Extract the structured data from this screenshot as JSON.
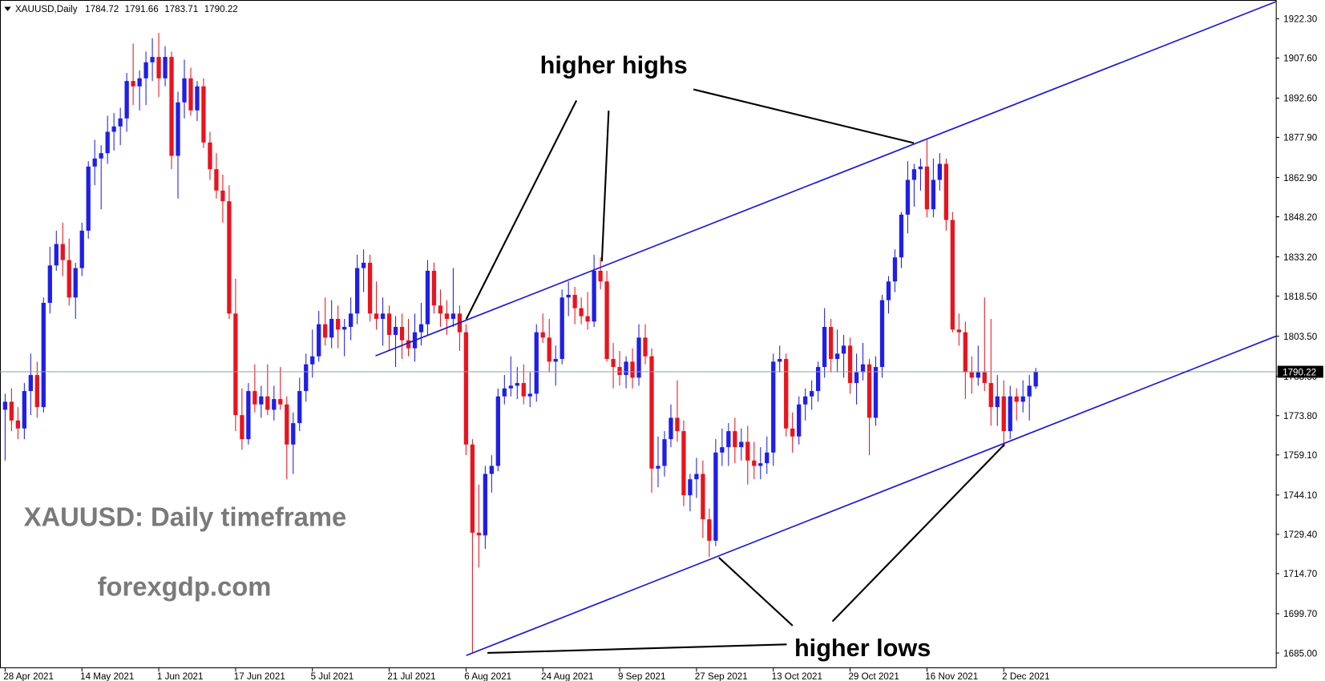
{
  "chart_data": {
    "type": "candlestick",
    "title": "XAUUSD,Daily",
    "up_color": "#1f1fe6",
    "down_color": "#e8141e",
    "channel_color": "#1a1ad0",
    "price_line_color": "#8c9cac",
    "grid": false,
    "xlim": [
      -0.8,
      198.5
    ],
    "ylim": [
      1679.3,
      1929.3
    ],
    "xticks": [
      {
        "value": 0,
        "label": "28 Apr 2021"
      },
      {
        "value": 12,
        "label": "14 May 2021"
      },
      {
        "value": 24,
        "label": "1 Jun 2021"
      },
      {
        "value": 36,
        "label": "17 Jun 2021"
      },
      {
        "value": 48,
        "label": "5 Jul 2021"
      },
      {
        "value": 60,
        "label": "21 Jul 2021"
      },
      {
        "value": 72,
        "label": "6 Aug 2021"
      },
      {
        "value": 84,
        "label": "24 Aug 2021"
      },
      {
        "value": 96,
        "label": "9 Sep 2021"
      },
      {
        "value": 108,
        "label": "27 Sep 2021"
      },
      {
        "value": 120,
        "label": "13 Oct 2021"
      },
      {
        "value": 132,
        "label": "29 Oct 2021"
      },
      {
        "value": 144,
        "label": "16 Nov 2021"
      },
      {
        "value": 156,
        "label": "2 Dec 2021"
      }
    ],
    "yticks": [
      {
        "value": 1685.0,
        "label": "1685.00"
      },
      {
        "value": 1699.7,
        "label": "1699.70"
      },
      {
        "value": 1714.7,
        "label": "1714.70"
      },
      {
        "value": 1729.4,
        "label": "1729.40"
      },
      {
        "value": 1744.1,
        "label": "1744.10"
      },
      {
        "value": 1759.1,
        "label": "1759.10"
      },
      {
        "value": 1773.8,
        "label": "1773.80"
      },
      {
        "value": 1788.5,
        "label": "1788.50"
      },
      {
        "value": 1803.5,
        "label": "1803.50"
      },
      {
        "value": 1818.5,
        "label": "1818.50"
      },
      {
        "value": 1833.2,
        "label": "1833.20"
      },
      {
        "value": 1848.2,
        "label": "1848.20"
      },
      {
        "value": 1862.9,
        "label": "1862.90"
      },
      {
        "value": 1877.9,
        "label": "1877.90"
      },
      {
        "value": 1892.6,
        "label": "1892.60"
      },
      {
        "value": 1907.6,
        "label": "1907.60"
      },
      {
        "value": 1922.3,
        "label": "1922.30"
      }
    ],
    "annotations": [
      "higher highs",
      "higher lows",
      "XAUUSD: Daily timeframe",
      "forexgdp.com"
    ],
    "ohlc": [
      [
        1776,
        1782,
        1757,
        1779
      ],
      [
        1779,
        1784,
        1768,
        1772
      ],
      [
        1772,
        1777,
        1765,
        1769
      ],
      [
        1769,
        1786,
        1765,
        1783
      ],
      [
        1783,
        1797,
        1774,
        1789
      ],
      [
        1789,
        1794,
        1773,
        1777
      ],
      [
        1777,
        1818,
        1775,
        1816
      ],
      [
        1816,
        1837,
        1812,
        1830
      ],
      [
        1830,
        1843,
        1828,
        1838
      ],
      [
        1838,
        1846,
        1826,
        1832
      ],
      [
        1832,
        1840,
        1815,
        1818
      ],
      [
        1818,
        1831,
        1810,
        1829
      ],
      [
        1829,
        1846,
        1826,
        1843
      ],
      [
        1843,
        1869,
        1840,
        1867
      ],
      [
        1867,
        1877,
        1860,
        1870
      ],
      [
        1870,
        1875,
        1851,
        1872
      ],
      [
        1872,
        1886,
        1868,
        1880
      ],
      [
        1880,
        1887,
        1873,
        1882
      ],
      [
        1882,
        1889,
        1875,
        1885
      ],
      [
        1885,
        1902,
        1880,
        1899
      ],
      [
        1899,
        1913,
        1890,
        1897
      ],
      [
        1897,
        1903,
        1888,
        1900
      ],
      [
        1900,
        1910,
        1890,
        1906
      ],
      [
        1906,
        1915,
        1899,
        1908
      ],
      [
        1908,
        1917,
        1893,
        1900
      ],
      [
        1900,
        1912,
        1897,
        1908
      ],
      [
        1908,
        1910,
        1866,
        1871
      ],
      [
        1871,
        1895,
        1855,
        1891
      ],
      [
        1891,
        1907,
        1885,
        1900
      ],
      [
        1900,
        1904,
        1886,
        1888
      ],
      [
        1888,
        1899,
        1884,
        1897
      ],
      [
        1897,
        1900,
        1874,
        1876
      ],
      [
        1876,
        1880,
        1862,
        1866
      ],
      [
        1866,
        1872,
        1855,
        1858
      ],
      [
        1858,
        1864,
        1846,
        1854
      ],
      [
        1854,
        1860,
        1810,
        1812
      ],
      [
        1812,
        1825,
        1768,
        1774
      ],
      [
        1774,
        1784,
        1761,
        1765
      ],
      [
        1765,
        1786,
        1763,
        1783
      ],
      [
        1783,
        1793,
        1775,
        1778
      ],
      [
        1778,
        1785,
        1773,
        1781
      ],
      [
        1781,
        1793,
        1774,
        1776
      ],
      [
        1776,
        1785,
        1772,
        1780
      ],
      [
        1780,
        1792,
        1776,
        1778
      ],
      [
        1778,
        1781,
        1750,
        1763
      ],
      [
        1763,
        1775,
        1752,
        1771
      ],
      [
        1771,
        1788,
        1768,
        1783
      ],
      [
        1783,
        1797,
        1779,
        1793
      ],
      [
        1793,
        1806,
        1788,
        1796
      ],
      [
        1796,
        1813,
        1794,
        1808
      ],
      [
        1808,
        1818,
        1800,
        1803
      ],
      [
        1803,
        1817,
        1799,
        1810
      ],
      [
        1810,
        1815,
        1799,
        1806
      ],
      [
        1806,
        1810,
        1796,
        1807
      ],
      [
        1807,
        1818,
        1802,
        1812
      ],
      [
        1812,
        1834,
        1808,
        1829
      ],
      [
        1829,
        1836,
        1820,
        1831
      ],
      [
        1831,
        1834,
        1809,
        1812
      ],
      [
        1812,
        1824,
        1806,
        1810
      ],
      [
        1810,
        1818,
        1800,
        1812
      ],
      [
        1812,
        1815,
        1798,
        1804
      ],
      [
        1804,
        1811,
        1792,
        1807
      ],
      [
        1807,
        1812,
        1795,
        1802
      ],
      [
        1802,
        1810,
        1796,
        1799
      ],
      [
        1799,
        1812,
        1794,
        1805
      ],
      [
        1805,
        1816,
        1800,
        1808
      ],
      [
        1808,
        1832,
        1804,
        1828
      ],
      [
        1828,
        1831,
        1812,
        1815
      ],
      [
        1815,
        1821,
        1807,
        1812
      ],
      [
        1812,
        1817,
        1804,
        1810
      ],
      [
        1810,
        1829,
        1807,
        1812
      ],
      [
        1812,
        1815,
        1798,
        1805
      ],
      [
        1805,
        1808,
        1759,
        1763
      ],
      [
        1763,
        1765,
        1685,
        1730
      ],
      [
        1730,
        1748,
        1717,
        1729
      ],
      [
        1729,
        1755,
        1724,
        1752
      ],
      [
        1752,
        1759,
        1745,
        1755
      ],
      [
        1755,
        1784,
        1753,
        1781
      ],
      [
        1781,
        1789,
        1778,
        1784
      ],
      [
        1784,
        1796,
        1781,
        1785
      ],
      [
        1785,
        1792,
        1780,
        1786
      ],
      [
        1786,
        1793,
        1778,
        1781
      ],
      [
        1781,
        1790,
        1777,
        1782
      ],
      [
        1782,
        1808,
        1779,
        1805
      ],
      [
        1805,
        1812,
        1801,
        1803
      ],
      [
        1803,
        1810,
        1790,
        1794
      ],
      [
        1794,
        1800,
        1785,
        1795
      ],
      [
        1795,
        1821,
        1793,
        1818
      ],
      [
        1818,
        1824,
        1811,
        1819
      ],
      [
        1819,
        1822,
        1808,
        1814
      ],
      [
        1814,
        1818,
        1808,
        1811
      ],
      [
        1811,
        1820,
        1806,
        1809
      ],
      [
        1809,
        1834,
        1807,
        1828
      ],
      [
        1828,
        1833,
        1821,
        1824
      ],
      [
        1824,
        1828,
        1794,
        1795
      ],
      [
        1795,
        1801,
        1784,
        1792
      ],
      [
        1792,
        1798,
        1785,
        1789
      ],
      [
        1789,
        1796,
        1784,
        1794
      ],
      [
        1794,
        1799,
        1784,
        1788
      ],
      [
        1788,
        1808,
        1785,
        1803
      ],
      [
        1803,
        1808,
        1793,
        1796
      ],
      [
        1796,
        1799,
        1745,
        1754
      ],
      [
        1754,
        1766,
        1747,
        1755
      ],
      [
        1755,
        1768,
        1751,
        1765
      ],
      [
        1765,
        1778,
        1762,
        1773
      ],
      [
        1773,
        1787,
        1764,
        1768
      ],
      [
        1768,
        1772,
        1740,
        1744
      ],
      [
        1744,
        1752,
        1738,
        1750
      ],
      [
        1750,
        1758,
        1743,
        1752
      ],
      [
        1752,
        1757,
        1728,
        1735
      ],
      [
        1735,
        1739,
        1721,
        1727
      ],
      [
        1727,
        1765,
        1725,
        1760
      ],
      [
        1760,
        1769,
        1755,
        1762
      ],
      [
        1762,
        1771,
        1755,
        1768
      ],
      [
        1768,
        1773,
        1756,
        1762
      ],
      [
        1762,
        1769,
        1757,
        1764
      ],
      [
        1764,
        1770,
        1748,
        1757
      ],
      [
        1757,
        1764,
        1750,
        1755
      ],
      [
        1755,
        1762,
        1750,
        1756
      ],
      [
        1756,
        1766,
        1752,
        1760
      ],
      [
        1760,
        1797,
        1755,
        1794
      ],
      [
        1794,
        1800,
        1790,
        1795
      ],
      [
        1795,
        1797,
        1766,
        1769
      ],
      [
        1769,
        1775,
        1760,
        1766
      ],
      [
        1766,
        1781,
        1763,
        1778
      ],
      [
        1778,
        1784,
        1772,
        1781
      ],
      [
        1781,
        1787,
        1776,
        1783
      ],
      [
        1783,
        1794,
        1779,
        1792
      ],
      [
        1792,
        1814,
        1788,
        1807
      ],
      [
        1807,
        1810,
        1790,
        1795
      ],
      [
        1795,
        1806,
        1790,
        1797
      ],
      [
        1797,
        1804,
        1788,
        1800
      ],
      [
        1800,
        1803,
        1782,
        1786
      ],
      [
        1786,
        1797,
        1778,
        1790
      ],
      [
        1790,
        1801,
        1787,
        1793
      ],
      [
        1793,
        1795,
        1759,
        1773
      ],
      [
        1773,
        1796,
        1770,
        1792
      ],
      [
        1792,
        1819,
        1788,
        1817
      ],
      [
        1817,
        1826,
        1812,
        1824
      ],
      [
        1824,
        1836,
        1820,
        1833
      ],
      [
        1833,
        1850,
        1829,
        1849
      ],
      [
        1849,
        1869,
        1842,
        1862
      ],
      [
        1862,
        1868,
        1852,
        1866
      ],
      [
        1866,
        1870,
        1858,
        1867
      ],
      [
        1867,
        1877,
        1848,
        1851
      ],
      [
        1851,
        1870,
        1848,
        1862
      ],
      [
        1862,
        1872,
        1858,
        1868
      ],
      [
        1868,
        1870,
        1843,
        1847
      ],
      [
        1847,
        1850,
        1805,
        1806
      ],
      [
        1806,
        1812,
        1800,
        1805
      ],
      [
        1805,
        1809,
        1780,
        1790
      ],
      [
        1790,
        1796,
        1782,
        1788
      ],
      [
        1788,
        1800,
        1785,
        1790
      ],
      [
        1790,
        1818,
        1783,
        1786
      ],
      [
        1786,
        1810,
        1770,
        1777
      ],
      [
        1777,
        1789,
        1770,
        1781
      ],
      [
        1781,
        1787,
        1762,
        1768
      ],
      [
        1768,
        1785,
        1765,
        1781
      ],
      [
        1781,
        1784,
        1772,
        1779
      ],
      [
        1779,
        1787,
        1775,
        1781
      ],
      [
        1781,
        1789,
        1772,
        1785
      ],
      [
        1784.72,
        1791.66,
        1783.71,
        1790.22
      ]
    ]
  }
}
